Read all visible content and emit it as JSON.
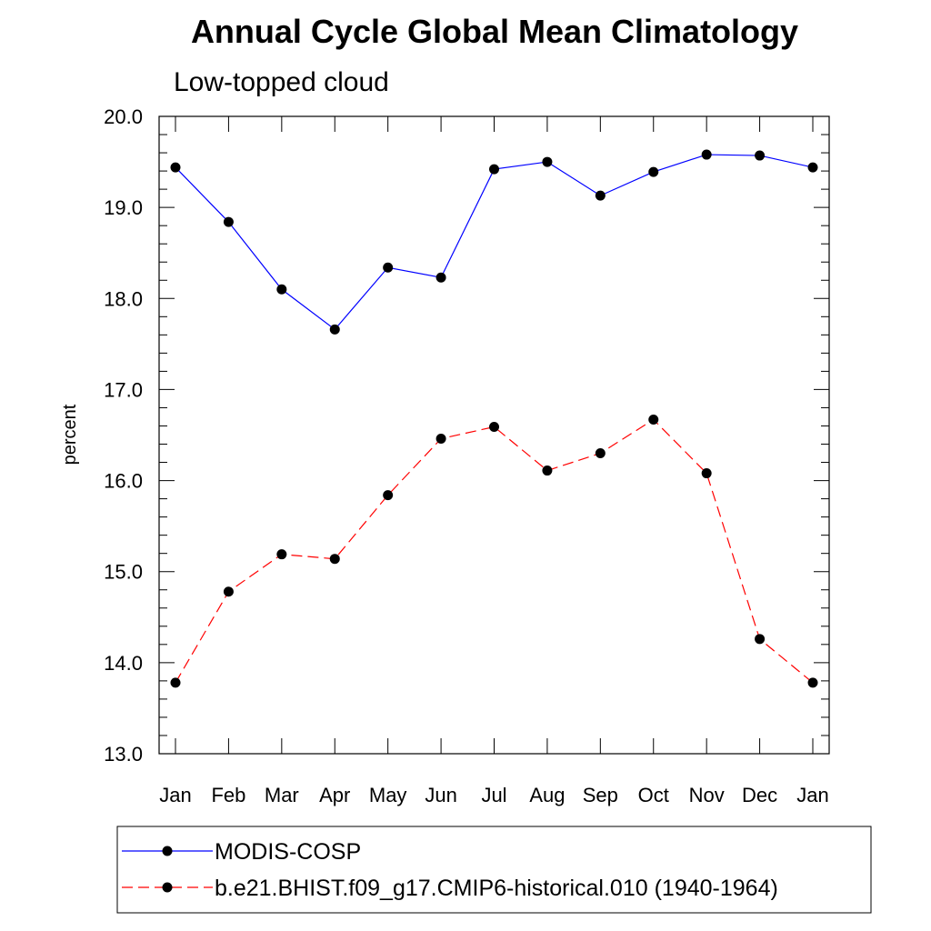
{
  "chart_data": {
    "type": "line",
    "title": "Annual Cycle Global Mean Climatology",
    "subtitle": "Low-topped cloud",
    "xlabel": "",
    "ylabel": "percent",
    "categories": [
      "Jan",
      "Feb",
      "Mar",
      "Apr",
      "May",
      "Jun",
      "Jul",
      "Aug",
      "Sep",
      "Oct",
      "Nov",
      "Dec",
      "Jan"
    ],
    "ylim": [
      13.0,
      20.0
    ],
    "yticks": [
      "13.0",
      "14.0",
      "15.0",
      "16.0",
      "17.0",
      "18.0",
      "19.0",
      "20.0"
    ],
    "series": [
      {
        "name": "MODIS-COSP",
        "color": "#0000ff",
        "style": "solid",
        "values": [
          19.44,
          18.84,
          18.1,
          17.66,
          18.34,
          18.23,
          19.42,
          19.5,
          19.13,
          19.39,
          19.58,
          19.57,
          19.44
        ]
      },
      {
        "name": "b.e21.BHIST.f09_g17.CMIP6-historical.010 (1940-1964)",
        "color": "#ff0000",
        "style": "dashed",
        "values": [
          13.78,
          14.78,
          15.19,
          15.14,
          15.84,
          16.46,
          16.59,
          16.11,
          16.3,
          16.67,
          16.08,
          14.26,
          13.78
        ]
      }
    ],
    "legend_position": "bottom"
  }
}
